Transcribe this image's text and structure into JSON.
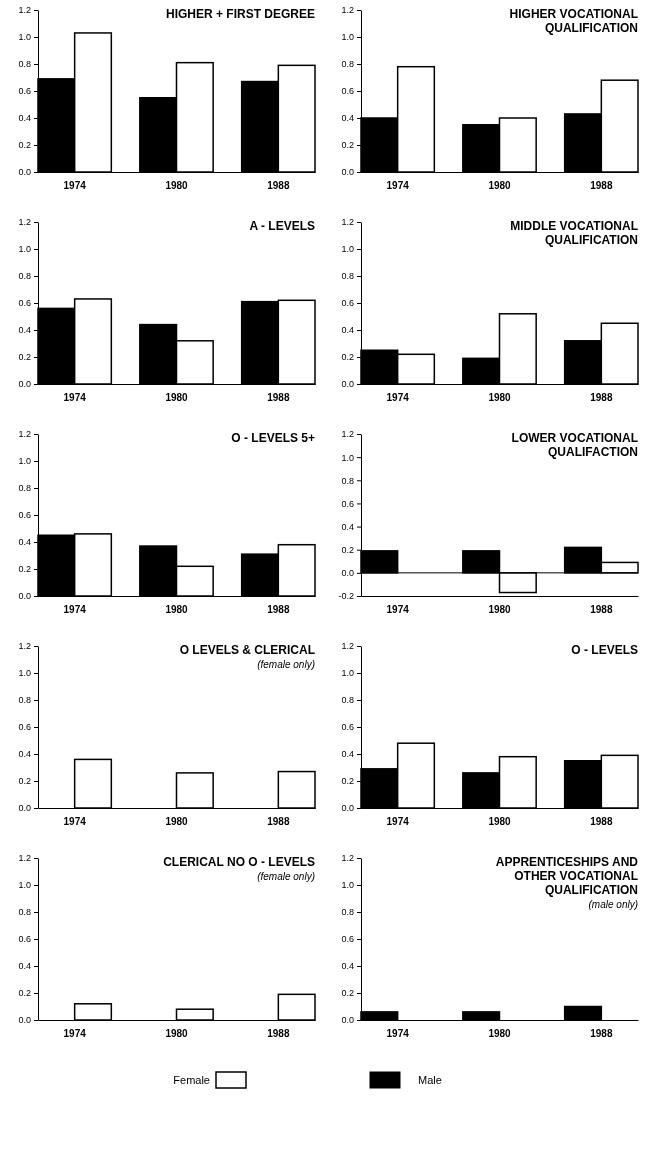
{
  "chart_data": [
    {
      "type": "bar",
      "title": "HIGHER + FIRST DEGREE",
      "categories": [
        "1974",
        "1980",
        "1988"
      ],
      "ylim": [
        0,
        1.2
      ],
      "yticks": [
        {
          "value": 0,
          "label": "0.0"
        },
        {
          "value": 0.2,
          "label": "0.2"
        },
        {
          "value": 0.4,
          "label": "0.4"
        },
        {
          "value": 0.6,
          "label": "0.6"
        },
        {
          "value": 0.8,
          "label": "0.8"
        },
        {
          "value": 1.0,
          "label": "1.0"
        },
        {
          "value": 1.2,
          "label": "1.2"
        }
      ],
      "series": [
        {
          "color": "#000000",
          "values": [
            0.69,
            0.55,
            0.67
          ]
        },
        {
          "color": "#ffffff",
          "values": [
            1.03,
            0.81,
            0.79
          ]
        }
      ]
    },
    {
      "type": "bar",
      "title": "HIGHER VOCATIONAL QUALIFICATION",
      "categories": [
        "1974",
        "1980",
        "1988"
      ],
      "ylim": [
        0,
        1.2
      ],
      "yticks": [
        {
          "value": 0,
          "label": "0.0"
        },
        {
          "value": 0.2,
          "label": "0.2"
        },
        {
          "value": 0.4,
          "label": "0.4"
        },
        {
          "value": 0.6,
          "label": "0.6"
        },
        {
          "value": 0.8,
          "label": "0.8"
        },
        {
          "value": 1.0,
          "label": "1.0"
        },
        {
          "value": 1.2,
          "label": "1.2"
        }
      ],
      "series": [
        {
          "color": "#000000",
          "values": [
            0.4,
            0.35,
            0.43
          ]
        },
        {
          "color": "#ffffff",
          "values": [
            0.78,
            0.4,
            0.68
          ]
        }
      ]
    },
    {
      "type": "bar",
      "title": "A - LEVELS",
      "categories": [
        "1974",
        "1980",
        "1988"
      ],
      "ylim": [
        0,
        1.2
      ],
      "yticks": [
        {
          "value": 0,
          "label": "0.0"
        },
        {
          "value": 0.2,
          "label": "0.2"
        },
        {
          "value": 0.4,
          "label": "0.4"
        },
        {
          "value": 0.6,
          "label": "0.6"
        },
        {
          "value": 0.8,
          "label": "0.8"
        },
        {
          "value": 1.0,
          "label": "1.0"
        },
        {
          "value": 1.2,
          "label": "1.2"
        }
      ],
      "series": [
        {
          "color": "#000000",
          "values": [
            0.56,
            0.44,
            0.61
          ]
        },
        {
          "color": "#ffffff",
          "values": [
            0.63,
            0.32,
            0.62
          ]
        }
      ]
    },
    {
      "type": "bar",
      "title": "MIDDLE VOCATIONAL QUALIFICATION",
      "categories": [
        "1974",
        "1980",
        "1988"
      ],
      "ylim": [
        0,
        1.2
      ],
      "yticks": [
        {
          "value": 0,
          "label": "0.0"
        },
        {
          "value": 0.2,
          "label": "0.2"
        },
        {
          "value": 0.4,
          "label": "0.4"
        },
        {
          "value": 0.6,
          "label": "0.6"
        },
        {
          "value": 0.8,
          "label": "0.8"
        },
        {
          "value": 1.0,
          "label": "1.0"
        },
        {
          "value": 1.2,
          "label": "1.2"
        }
      ],
      "series": [
        {
          "color": "#000000",
          "values": [
            0.25,
            0.19,
            0.32
          ]
        },
        {
          "color": "#ffffff",
          "values": [
            0.22,
            0.52,
            0.45
          ]
        }
      ]
    },
    {
      "type": "bar",
      "title": "O - LEVELS 5+",
      "categories": [
        "1974",
        "1980",
        "1988"
      ],
      "ylim": [
        0,
        1.2
      ],
      "yticks": [
        {
          "value": 0,
          "label": "0.0"
        },
        {
          "value": 0.2,
          "label": "0.2"
        },
        {
          "value": 0.4,
          "label": "0.4"
        },
        {
          "value": 0.6,
          "label": "0.6"
        },
        {
          "value": 0.8,
          "label": "0.8"
        },
        {
          "value": 1.0,
          "label": "1.0"
        },
        {
          "value": 1.2,
          "label": "1.2"
        }
      ],
      "series": [
        {
          "color": "#000000",
          "values": [
            0.45,
            0.37,
            0.31
          ]
        },
        {
          "color": "#ffffff",
          "values": [
            0.46,
            0.22,
            0.38
          ]
        }
      ]
    },
    {
      "type": "bar",
      "title": "LOWER VOCATIONAL QUALIFACTION",
      "categories": [
        "1974",
        "1980",
        "1988"
      ],
      "ylim": [
        -0.2,
        1.2
      ],
      "yticks": [
        {
          "value": -0.2,
          "label": "-0.2"
        },
        {
          "value": 0,
          "label": "0.0"
        },
        {
          "value": 0.2,
          "label": "0.2"
        },
        {
          "value": 0.4,
          "label": "0.4"
        },
        {
          "value": 0.6,
          "label": "0.6"
        },
        {
          "value": 0.8,
          "label": "0.8"
        },
        {
          "value": 1.0,
          "label": "1.0"
        },
        {
          "value": 1.2,
          "label": "1.2"
        }
      ],
      "series": [
        {
          "color": "#000000",
          "values": [
            0.19,
            0.19,
            0.22
          ]
        },
        {
          "color": "#ffffff",
          "values": [
            0.0,
            -0.17,
            0.09
          ]
        }
      ]
    },
    {
      "type": "bar",
      "title": "O LEVELS & CLERICAL",
      "subtitle": "(female only)",
      "categories": [
        "1974",
        "1980",
        "1988"
      ],
      "ylim": [
        0,
        1.2
      ],
      "yticks": [
        {
          "value": 0,
          "label": "0.0"
        },
        {
          "value": 0.2,
          "label": "0.2"
        },
        {
          "value": 0.4,
          "label": "0.4"
        },
        {
          "value": 0.6,
          "label": "0.6"
        },
        {
          "value": 0.8,
          "label": "0.8"
        },
        {
          "value": 1.0,
          "label": "1.0"
        },
        {
          "value": 1.2,
          "label": "1.2"
        }
      ],
      "series": [
        {
          "color": "#000000",
          "values": [
            null,
            null,
            null
          ]
        },
        {
          "color": "#ffffff",
          "values": [
            0.36,
            0.26,
            0.27
          ]
        }
      ]
    },
    {
      "type": "bar",
      "title": "O - LEVELS",
      "categories": [
        "1974",
        "1980",
        "1988"
      ],
      "ylim": [
        0,
        1.2
      ],
      "yticks": [
        {
          "value": 0,
          "label": "0.0"
        },
        {
          "value": 0.2,
          "label": "0.2"
        },
        {
          "value": 0.4,
          "label": "0.4"
        },
        {
          "value": 0.6,
          "label": "0.6"
        },
        {
          "value": 0.8,
          "label": "0.8"
        },
        {
          "value": 1.0,
          "label": "1.0"
        },
        {
          "value": 1.2,
          "label": "1.2"
        }
      ],
      "series": [
        {
          "color": "#000000",
          "values": [
            0.29,
            0.26,
            0.35
          ]
        },
        {
          "color": "#ffffff",
          "values": [
            0.48,
            0.38,
            0.39
          ]
        }
      ]
    },
    {
      "type": "bar",
      "title": "CLERICAL NO O - LEVELS",
      "subtitle": "(female only)",
      "categories": [
        "1974",
        "1980",
        "1988"
      ],
      "ylim": [
        0,
        1.2
      ],
      "yticks": [
        {
          "value": 0,
          "label": "0.0"
        },
        {
          "value": 0.2,
          "label": "0.2"
        },
        {
          "value": 0.4,
          "label": "0.4"
        },
        {
          "value": 0.6,
          "label": "0.6"
        },
        {
          "value": 0.8,
          "label": "0.8"
        },
        {
          "value": 1.0,
          "label": "1.0"
        },
        {
          "value": 1.2,
          "label": "1.2"
        }
      ],
      "legend": "bottom",
      "series": [
        {
          "name": "Male",
          "color": "#000000",
          "values": [
            null,
            null,
            null
          ]
        },
        {
          "name": "Female",
          "color": "#ffffff",
          "values": [
            0.12,
            0.08,
            0.19
          ]
        }
      ]
    },
    {
      "type": "bar",
      "title": "APPRENTICESHIPS AND OTHER VOCATIONAL QUALIFICATION",
      "subtitle": "(male only)",
      "categories": [
        "1974",
        "1980",
        "1988"
      ],
      "ylim": [
        0,
        1.2
      ],
      "yticks": [
        {
          "value": 0,
          "label": "0.0"
        },
        {
          "value": 0.2,
          "label": "0.2"
        },
        {
          "value": 0.4,
          "label": "0.4"
        },
        {
          "value": 0.6,
          "label": "0.6"
        },
        {
          "value": 0.8,
          "label": "0.8"
        },
        {
          "value": 1.0,
          "label": "1.0"
        },
        {
          "value": 1.2,
          "label": "1.2"
        }
      ],
      "series": [
        {
          "color": "#000000",
          "values": [
            0.06,
            0.06,
            0.1
          ]
        },
        {
          "color": "#ffffff",
          "values": [
            null,
            null,
            null
          ]
        }
      ]
    }
  ]
}
